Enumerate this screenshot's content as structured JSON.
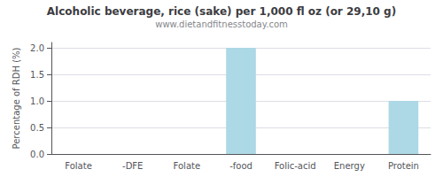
{
  "chart_data": {
    "type": "bar",
    "title": "Alcoholic beverage, rice (sake) per 1,000 fl oz (or 29,10 g)",
    "subtitle": "www.dietandfitnesstoday.com",
    "categories": [
      "Folate",
      "-DFE",
      "Folate",
      "-food",
      "Folic-acid",
      "Energy",
      "Protein"
    ],
    "values": [
      0.0,
      0.0,
      0.0,
      2.0,
      0.0,
      0.0,
      1.0
    ],
    "color": "#add8e6",
    "ylabel": "Percentage of RDH (%)",
    "ylim": [
      0,
      2.1
    ],
    "yticks": [
      {
        "value": 0,
        "label": "0.0"
      },
      0.5,
      {
        "value": 1,
        "label": "1.0"
      },
      1.5,
      {
        "value": 2,
        "label": "2.0"
      }
    ],
    "grid": true
  }
}
